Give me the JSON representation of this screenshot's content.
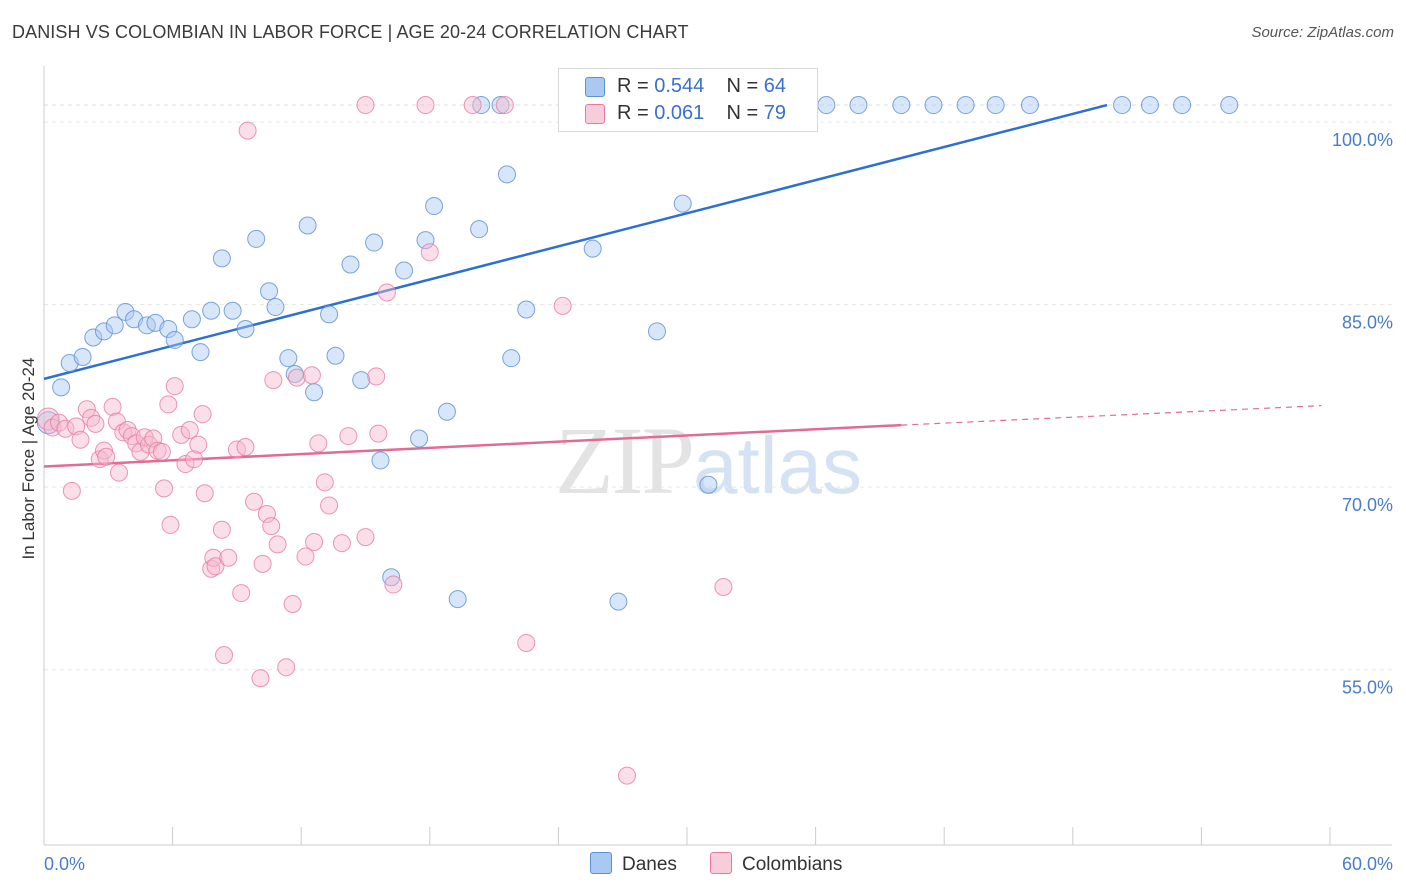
{
  "title": "DANISH VS COLOMBIAN IN LABOR FORCE | AGE 20-24 CORRELATION CHART",
  "source": "Source: ZipAtlas.com",
  "watermark": {
    "zip": "ZIP",
    "atlas": "atlas"
  },
  "legend": {
    "rows": [
      {
        "r_label": "R =",
        "r_value": "0.544",
        "n_label": "N =",
        "n_value": "64",
        "color": "#a9c8f2"
      },
      {
        "r_label": "R =",
        "r_value": "0.061",
        "n_label": "N =",
        "n_value": "79",
        "color": "#f7b8cc"
      }
    ]
  },
  "bottom_legend": [
    {
      "label": "Danes",
      "color": "#a9c8f2"
    },
    {
      "label": "Colombians",
      "color": "#f7b8cc"
    }
  ],
  "chart_data": {
    "type": "scatter",
    "title": "DANISH VS COLOMBIAN IN LABOR FORCE | AGE 20-24 CORRELATION CHART",
    "xlabel": "",
    "ylabel": "In Labor Force | Age 20-24",
    "xlim": [
      0,
      60
    ],
    "ylim": [
      40.6,
      105.1
    ],
    "x_tick_labels": [
      {
        "value": 0,
        "label": "0.0%"
      },
      {
        "value": 60,
        "label": "60.0%"
      }
    ],
    "y_tick_labels": [
      {
        "value": 100,
        "label": "100.0%"
      },
      {
        "value": 85,
        "label": "85.0%"
      },
      {
        "value": 70,
        "label": "70.0%"
      },
      {
        "value": 55,
        "label": "55.0%"
      }
    ],
    "y_grid": [
      100,
      85,
      70,
      55
    ],
    "top_dashed_line": 101.4,
    "grid": true,
    "series": [
      {
        "name": "Danes",
        "color": "#5b8fd6",
        "fill": "#a9c8f2",
        "trend": {
          "x0": 0,
          "y0": 78.9,
          "x1": 49.6,
          "y1": 101.4,
          "dash_to": null
        },
        "points": [
          [
            0.2,
            75.3
          ],
          [
            0.8,
            78.2
          ],
          [
            1.2,
            80.2
          ],
          [
            1.8,
            80.7
          ],
          [
            2.3,
            82.3
          ],
          [
            2.8,
            82.8
          ],
          [
            3.3,
            83.3
          ],
          [
            3.8,
            84.4
          ],
          [
            4.2,
            83.8
          ],
          [
            4.8,
            83.3
          ],
          [
            5.2,
            83.5
          ],
          [
            5.8,
            83.0
          ],
          [
            6.1,
            82.1
          ],
          [
            6.9,
            83.8
          ],
          [
            7.3,
            81.1
          ],
          [
            7.8,
            84.5
          ],
          [
            8.3,
            88.8
          ],
          [
            8.8,
            84.5
          ],
          [
            9.4,
            83.0
          ],
          [
            9.9,
            90.4
          ],
          [
            10.5,
            86.1
          ],
          [
            10.8,
            84.8
          ],
          [
            11.4,
            80.6
          ],
          [
            11.7,
            79.3
          ],
          [
            12.3,
            91.5
          ],
          [
            12.6,
            77.8
          ],
          [
            13.3,
            84.2
          ],
          [
            13.6,
            80.8
          ],
          [
            14.3,
            88.3
          ],
          [
            14.8,
            78.8
          ],
          [
            15.4,
            90.1
          ],
          [
            15.7,
            72.2
          ],
          [
            16.2,
            62.6
          ],
          [
            16.8,
            87.8
          ],
          [
            17.5,
            74.0
          ],
          [
            17.8,
            90.3
          ],
          [
            18.2,
            93.1
          ],
          [
            18.8,
            76.2
          ],
          [
            19.3,
            60.8
          ],
          [
            20.3,
            91.2
          ],
          [
            20.4,
            101.4
          ],
          [
            21.3,
            101.4
          ],
          [
            21.6,
            95.7
          ],
          [
            21.8,
            80.6
          ],
          [
            22.5,
            84.6
          ],
          [
            25.3,
            101.4
          ],
          [
            25.6,
            89.6
          ],
          [
            26.8,
            60.6
          ],
          [
            27.3,
            101.4
          ],
          [
            28.6,
            82.8
          ],
          [
            29.8,
            93.3
          ],
          [
            31.0,
            70.2
          ],
          [
            33.5,
            101.4
          ],
          [
            36.5,
            101.4
          ],
          [
            38.0,
            101.4
          ],
          [
            40.0,
            101.4
          ],
          [
            41.5,
            101.4
          ],
          [
            43.0,
            101.4
          ],
          [
            44.4,
            101.4
          ],
          [
            46.0,
            101.4
          ],
          [
            50.3,
            101.4
          ],
          [
            51.6,
            101.4
          ],
          [
            53.1,
            101.4
          ],
          [
            55.3,
            101.4
          ]
        ]
      },
      {
        "name": "Colombians",
        "color": "#e87aa0",
        "fill": "#f7b8cc",
        "trend": {
          "x0": 0,
          "y0": 71.7,
          "x1": 40.0,
          "y1": 75.1,
          "dash_to": {
            "x": 59.6,
            "y": 76.7
          }
        },
        "points": [
          [
            0.2,
            75.6
          ],
          [
            0.4,
            74.9
          ],
          [
            0.7,
            75.3
          ],
          [
            1.0,
            74.8
          ],
          [
            1.3,
            69.7
          ],
          [
            1.5,
            75.0
          ],
          [
            1.7,
            73.9
          ],
          [
            2.0,
            76.4
          ],
          [
            2.2,
            75.7
          ],
          [
            2.4,
            75.2
          ],
          [
            2.6,
            72.3
          ],
          [
            2.8,
            73.0
          ],
          [
            2.9,
            72.5
          ],
          [
            3.2,
            76.6
          ],
          [
            3.4,
            75.4
          ],
          [
            3.5,
            71.2
          ],
          [
            3.7,
            74.5
          ],
          [
            3.9,
            74.7
          ],
          [
            4.1,
            74.2
          ],
          [
            4.3,
            73.6
          ],
          [
            4.5,
            72.9
          ],
          [
            4.7,
            74.1
          ],
          [
            4.9,
            73.5
          ],
          [
            5.1,
            74.0
          ],
          [
            5.3,
            73.0
          ],
          [
            5.5,
            72.9
          ],
          [
            5.6,
            69.9
          ],
          [
            5.8,
            76.8
          ],
          [
            5.9,
            66.9
          ],
          [
            6.1,
            78.3
          ],
          [
            6.4,
            74.3
          ],
          [
            6.6,
            71.9
          ],
          [
            6.8,
            74.7
          ],
          [
            7.0,
            72.3
          ],
          [
            7.2,
            73.5
          ],
          [
            7.4,
            76.0
          ],
          [
            7.5,
            69.5
          ],
          [
            7.8,
            63.3
          ],
          [
            7.9,
            64.2
          ],
          [
            8.0,
            63.5
          ],
          [
            8.3,
            66.5
          ],
          [
            8.4,
            56.2
          ],
          [
            8.6,
            64.2
          ],
          [
            9.0,
            73.1
          ],
          [
            9.2,
            61.3
          ],
          [
            9.4,
            73.3
          ],
          [
            9.8,
            68.8
          ],
          [
            10.1,
            54.3
          ],
          [
            10.2,
            63.7
          ],
          [
            10.4,
            67.8
          ],
          [
            10.6,
            66.8
          ],
          [
            10.9,
            65.3
          ],
          [
            10.7,
            78.8
          ],
          [
            11.3,
            55.2
          ],
          [
            11.6,
            60.4
          ],
          [
            11.8,
            79.0
          ],
          [
            12.2,
            64.3
          ],
          [
            12.5,
            79.2
          ],
          [
            12.6,
            65.5
          ],
          [
            12.8,
            73.6
          ],
          [
            13.1,
            70.4
          ],
          [
            13.3,
            68.5
          ],
          [
            13.9,
            65.4
          ],
          [
            14.2,
            74.2
          ],
          [
            15.0,
            65.9
          ],
          [
            15.5,
            79.1
          ],
          [
            15.6,
            74.4
          ],
          [
            16.0,
            86.0
          ],
          [
            16.3,
            62.0
          ],
          [
            18.0,
            89.3
          ],
          [
            20.0,
            101.4
          ],
          [
            21.5,
            101.4
          ],
          [
            22.5,
            57.2
          ],
          [
            24.2,
            84.9
          ],
          [
            27.2,
            46.3
          ],
          [
            31.7,
            61.8
          ],
          [
            9.5,
            99.3
          ],
          [
            15.0,
            101.4
          ],
          [
            17.8,
            101.4
          ]
        ]
      }
    ]
  }
}
